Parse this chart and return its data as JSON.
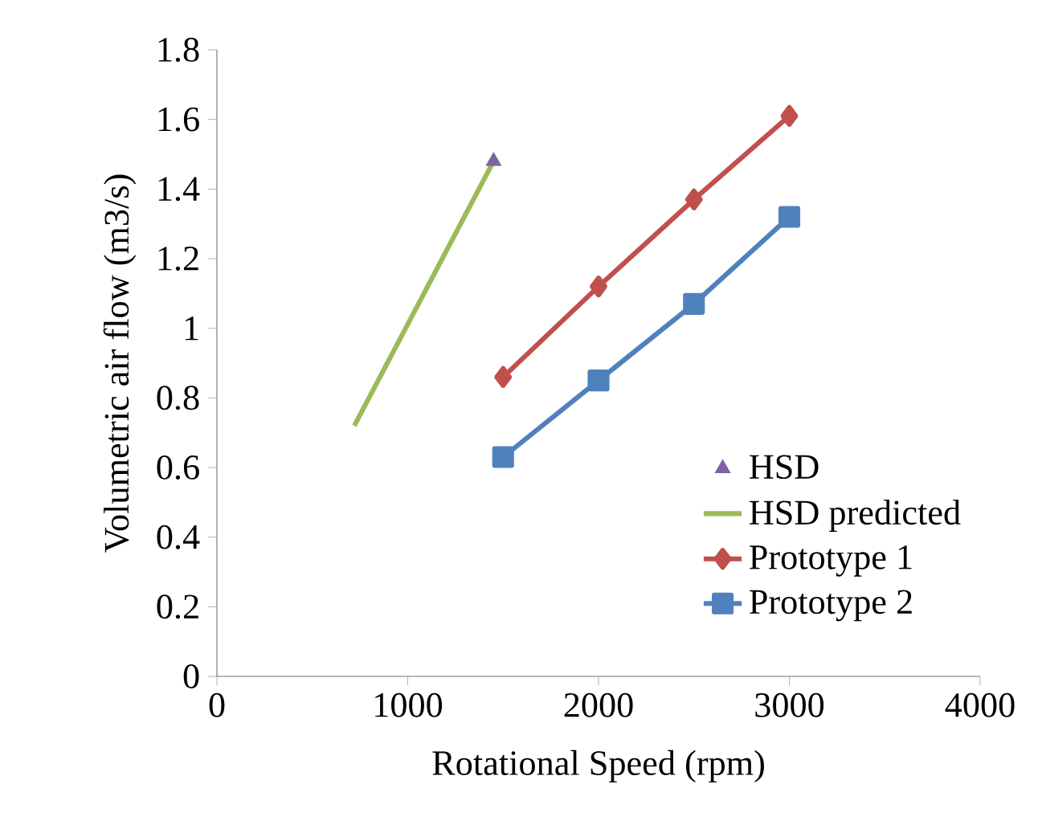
{
  "chart_data": {
    "type": "line",
    "xlabel": "Rotational Speed (rpm)",
    "ylabel": "Volumetric air flow (m3/s)",
    "xlim": [
      0,
      4000
    ],
    "xticks": [
      0,
      1000,
      2000,
      3000,
      4000
    ],
    "ylim": [
      0,
      1.8
    ],
    "yticks": [
      0,
      0.2,
      0.4,
      0.6,
      0.8,
      1,
      1.2,
      1.4,
      1.6,
      1.8
    ],
    "grid": false,
    "legend": "bottom right",
    "series": [
      {
        "name": "HSD",
        "type": "scatter",
        "marker": "triangle",
        "color": "#8064a2",
        "x": [
          1450
        ],
        "values": [
          1.48
        ]
      },
      {
        "name": "HSD predicted",
        "marker": "none",
        "color": "#9bbb59",
        "x": [
          720,
          1450
        ],
        "values": [
          0.72,
          1.48
        ]
      },
      {
        "name": "Prototype 1",
        "marker": "diamond",
        "color": "#c0504d",
        "x": [
          1500,
          2000,
          2500,
          3000
        ],
        "values": [
          0.86,
          1.12,
          1.37,
          1.61
        ]
      },
      {
        "name": "Prototype 2",
        "marker": "square",
        "color": "#4f81bd",
        "x": [
          1500,
          2000,
          2500,
          3000
        ],
        "values": [
          0.63,
          0.85,
          1.07,
          1.32
        ]
      }
    ]
  }
}
